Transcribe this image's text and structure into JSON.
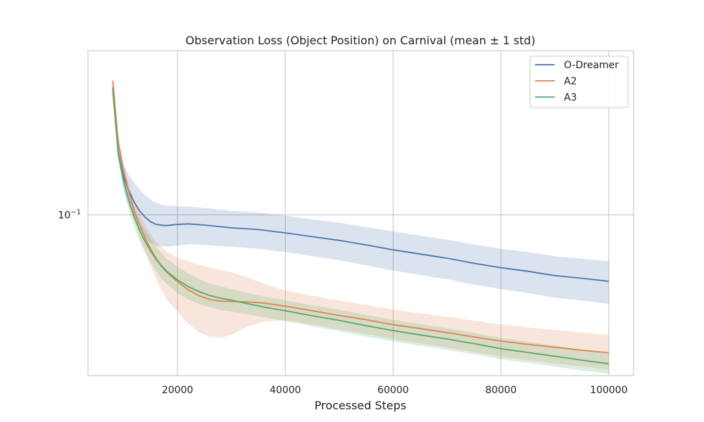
{
  "chart_data": {
    "type": "line",
    "title": "Observation Loss (Object Position) on Carnival (mean ± 1 std)",
    "xlabel": "Processed Steps",
    "ylabel": "",
    "yscale": "log",
    "xlim": [
      3400,
      104600
    ],
    "ylim": [
      0.0365,
      0.28
    ],
    "x_ticks": [
      {
        "value": 20000,
        "label": "20000"
      },
      {
        "value": 40000,
        "label": "40000"
      },
      {
        "value": 60000,
        "label": "60000"
      },
      {
        "value": 80000,
        "label": "80000"
      },
      {
        "value": 100000,
        "label": "100000"
      }
    ],
    "y_ticks": [
      {
        "value": 0.1,
        "base": "10",
        "exp": "−1"
      }
    ],
    "grid": true,
    "legend": "top-right",
    "series": [
      {
        "name": "O-Dreamer",
        "color": "#4c72b0",
        "points": [
          {
            "x": 8000,
            "y": 0.222,
            "lo": 0.212,
            "hi": 0.232
          },
          {
            "x": 9000,
            "y": 0.148,
            "lo": 0.141,
            "hi": 0.156
          },
          {
            "x": 10000,
            "y": 0.127,
            "lo": 0.117,
            "hi": 0.137
          },
          {
            "x": 11000,
            "y": 0.116,
            "lo": 0.105,
            "hi": 0.128
          },
          {
            "x": 12000,
            "y": 0.108,
            "lo": 0.097,
            "hi": 0.122
          },
          {
            "x": 13000,
            "y": 0.1025,
            "lo": 0.091,
            "hi": 0.117
          },
          {
            "x": 14000,
            "y": 0.0985,
            "lo": 0.087,
            "hi": 0.113
          },
          {
            "x": 15000,
            "y": 0.0958,
            "lo": 0.084,
            "hi": 0.11
          },
          {
            "x": 16000,
            "y": 0.0942,
            "lo": 0.0825,
            "hi": 0.108
          },
          {
            "x": 17000,
            "y": 0.0937,
            "lo": 0.082,
            "hi": 0.1065
          },
          {
            "x": 18000,
            "y": 0.0935,
            "lo": 0.082,
            "hi": 0.106
          },
          {
            "x": 20000,
            "y": 0.0942,
            "lo": 0.0825,
            "hi": 0.1055
          },
          {
            "x": 22000,
            "y": 0.0945,
            "lo": 0.0832,
            "hi": 0.1052
          },
          {
            "x": 25000,
            "y": 0.0938,
            "lo": 0.0828,
            "hi": 0.1045
          },
          {
            "x": 30000,
            "y": 0.0922,
            "lo": 0.0818,
            "hi": 0.1025
          },
          {
            "x": 35000,
            "y": 0.0912,
            "lo": 0.0808,
            "hi": 0.1015
          },
          {
            "x": 40000,
            "y": 0.0893,
            "lo": 0.0792,
            "hi": 0.0995
          },
          {
            "x": 45000,
            "y": 0.0872,
            "lo": 0.0772,
            "hi": 0.0972
          },
          {
            "x": 50000,
            "y": 0.0852,
            "lo": 0.0752,
            "hi": 0.0952
          },
          {
            "x": 55000,
            "y": 0.0828,
            "lo": 0.0729,
            "hi": 0.0927
          },
          {
            "x": 60000,
            "y": 0.0803,
            "lo": 0.0705,
            "hi": 0.0902
          },
          {
            "x": 65000,
            "y": 0.0782,
            "lo": 0.0686,
            "hi": 0.0878
          },
          {
            "x": 70000,
            "y": 0.0762,
            "lo": 0.0668,
            "hi": 0.0856
          },
          {
            "x": 75000,
            "y": 0.0738,
            "lo": 0.0645,
            "hi": 0.0831
          },
          {
            "x": 80000,
            "y": 0.0718,
            "lo": 0.0628,
            "hi": 0.0808
          },
          {
            "x": 85000,
            "y": 0.0702,
            "lo": 0.0612,
            "hi": 0.0792
          },
          {
            "x": 90000,
            "y": 0.0683,
            "lo": 0.0595,
            "hi": 0.0771
          },
          {
            "x": 95000,
            "y": 0.0672,
            "lo": 0.0584,
            "hi": 0.076
          },
          {
            "x": 100000,
            "y": 0.0659,
            "lo": 0.0572,
            "hi": 0.0747
          }
        ]
      },
      {
        "name": "A2",
        "color": "#dd8452",
        "points": [
          {
            "x": 8000,
            "y": 0.232,
            "lo": 0.224,
            "hi": 0.24
          },
          {
            "x": 9000,
            "y": 0.158,
            "lo": 0.151,
            "hi": 0.165
          },
          {
            "x": 10000,
            "y": 0.132,
            "lo": 0.126,
            "hi": 0.138
          },
          {
            "x": 11000,
            "y": 0.115,
            "lo": 0.109,
            "hi": 0.121
          },
          {
            "x": 12000,
            "y": 0.102,
            "lo": 0.0965,
            "hi": 0.1085
          },
          {
            "x": 13000,
            "y": 0.0935,
            "lo": 0.087,
            "hi": 0.1005
          },
          {
            "x": 14000,
            "y": 0.0865,
            "lo": 0.079,
            "hi": 0.094
          },
          {
            "x": 15000,
            "y": 0.0808,
            "lo": 0.0725,
            "hi": 0.0885
          },
          {
            "x": 16000,
            "y": 0.0762,
            "lo": 0.067,
            "hi": 0.0845
          },
          {
            "x": 17000,
            "y": 0.0725,
            "lo": 0.0625,
            "hi": 0.0815
          },
          {
            "x": 18000,
            "y": 0.0698,
            "lo": 0.0588,
            "hi": 0.0795
          },
          {
            "x": 20000,
            "y": 0.0658,
            "lo": 0.0545,
            "hi": 0.0765
          },
          {
            "x": 22000,
            "y": 0.0625,
            "lo": 0.0505,
            "hi": 0.0748
          },
          {
            "x": 24000,
            "y": 0.0602,
            "lo": 0.0478,
            "hi": 0.0732
          },
          {
            "x": 26000,
            "y": 0.0588,
            "lo": 0.0466,
            "hi": 0.0718
          },
          {
            "x": 28000,
            "y": 0.0582,
            "lo": 0.0462,
            "hi": 0.0708
          },
          {
            "x": 30000,
            "y": 0.0581,
            "lo": 0.0472,
            "hi": 0.0698
          },
          {
            "x": 33000,
            "y": 0.0579,
            "lo": 0.0496,
            "hi": 0.0675
          },
          {
            "x": 36000,
            "y": 0.0575,
            "lo": 0.0512,
            "hi": 0.065
          },
          {
            "x": 40000,
            "y": 0.0564,
            "lo": 0.0516,
            "hi": 0.0622
          },
          {
            "x": 45000,
            "y": 0.0548,
            "lo": 0.0503,
            "hi": 0.0602
          },
          {
            "x": 50000,
            "y": 0.0532,
            "lo": 0.0488,
            "hi": 0.0584
          },
          {
            "x": 55000,
            "y": 0.0518,
            "lo": 0.0474,
            "hi": 0.0568
          },
          {
            "x": 60000,
            "y": 0.0502,
            "lo": 0.0459,
            "hi": 0.0552
          },
          {
            "x": 65000,
            "y": 0.049,
            "lo": 0.0447,
            "hi": 0.054
          },
          {
            "x": 70000,
            "y": 0.0478,
            "lo": 0.0435,
            "hi": 0.0528
          },
          {
            "x": 75000,
            "y": 0.0465,
            "lo": 0.0423,
            "hi": 0.0515
          },
          {
            "x": 80000,
            "y": 0.0453,
            "lo": 0.0411,
            "hi": 0.0503
          },
          {
            "x": 85000,
            "y": 0.0444,
            "lo": 0.0402,
            "hi": 0.0494
          },
          {
            "x": 90000,
            "y": 0.0436,
            "lo": 0.0394,
            "hi": 0.0486
          },
          {
            "x": 95000,
            "y": 0.0428,
            "lo": 0.0386,
            "hi": 0.0478
          },
          {
            "x": 100000,
            "y": 0.0421,
            "lo": 0.0379,
            "hi": 0.0471
          }
        ]
      },
      {
        "name": "A3",
        "color": "#55a868",
        "points": [
          {
            "x": 8000,
            "y": 0.218,
            "lo": 0.211,
            "hi": 0.225
          },
          {
            "x": 9000,
            "y": 0.147,
            "lo": 0.141,
            "hi": 0.153
          },
          {
            "x": 10000,
            "y": 0.124,
            "lo": 0.118,
            "hi": 0.13
          },
          {
            "x": 11000,
            "y": 0.109,
            "lo": 0.103,
            "hi": 0.115
          },
          {
            "x": 12000,
            "y": 0.0985,
            "lo": 0.092,
            "hi": 0.105
          },
          {
            "x": 13000,
            "y": 0.0905,
            "lo": 0.0845,
            "hi": 0.0965
          },
          {
            "x": 14000,
            "y": 0.0845,
            "lo": 0.079,
            "hi": 0.0905
          },
          {
            "x": 15000,
            "y": 0.0798,
            "lo": 0.0742,
            "hi": 0.0858
          },
          {
            "x": 16000,
            "y": 0.0758,
            "lo": 0.0702,
            "hi": 0.0818
          },
          {
            "x": 17000,
            "y": 0.0728,
            "lo": 0.0672,
            "hi": 0.0788
          },
          {
            "x": 18000,
            "y": 0.0702,
            "lo": 0.0648,
            "hi": 0.076
          },
          {
            "x": 20000,
            "y": 0.0665,
            "lo": 0.0612,
            "hi": 0.0722
          },
          {
            "x": 22000,
            "y": 0.0638,
            "lo": 0.0588,
            "hi": 0.0692
          },
          {
            "x": 24000,
            "y": 0.0618,
            "lo": 0.0572,
            "hi": 0.0668
          },
          {
            "x": 26000,
            "y": 0.0603,
            "lo": 0.056,
            "hi": 0.065
          },
          {
            "x": 28000,
            "y": 0.0593,
            "lo": 0.0551,
            "hi": 0.0638
          },
          {
            "x": 30000,
            "y": 0.0586,
            "lo": 0.0546,
            "hi": 0.0628
          },
          {
            "x": 33000,
            "y": 0.0573,
            "lo": 0.0536,
            "hi": 0.0613
          },
          {
            "x": 36000,
            "y": 0.0561,
            "lo": 0.0526,
            "hi": 0.0599
          },
          {
            "x": 40000,
            "y": 0.0548,
            "lo": 0.0513,
            "hi": 0.0585
          },
          {
            "x": 45000,
            "y": 0.0531,
            "lo": 0.0497,
            "hi": 0.0567
          },
          {
            "x": 50000,
            "y": 0.0516,
            "lo": 0.0482,
            "hi": 0.0552
          },
          {
            "x": 55000,
            "y": 0.0499,
            "lo": 0.0466,
            "hi": 0.0534
          },
          {
            "x": 60000,
            "y": 0.0484,
            "lo": 0.0452,
            "hi": 0.0518
          },
          {
            "x": 65000,
            "y": 0.0471,
            "lo": 0.044,
            "hi": 0.0504
          },
          {
            "x": 70000,
            "y": 0.0459,
            "lo": 0.0429,
            "hi": 0.0491
          },
          {
            "x": 75000,
            "y": 0.0446,
            "lo": 0.0417,
            "hi": 0.0477
          },
          {
            "x": 80000,
            "y": 0.0432,
            "lo": 0.0404,
            "hi": 0.0462
          },
          {
            "x": 85000,
            "y": 0.0422,
            "lo": 0.0395,
            "hi": 0.0451
          },
          {
            "x": 90000,
            "y": 0.0412,
            "lo": 0.0386,
            "hi": 0.044
          },
          {
            "x": 95000,
            "y": 0.0402,
            "lo": 0.0377,
            "hi": 0.0429
          },
          {
            "x": 100000,
            "y": 0.0393,
            "lo": 0.0369,
            "hi": 0.0419
          }
        ]
      }
    ]
  }
}
